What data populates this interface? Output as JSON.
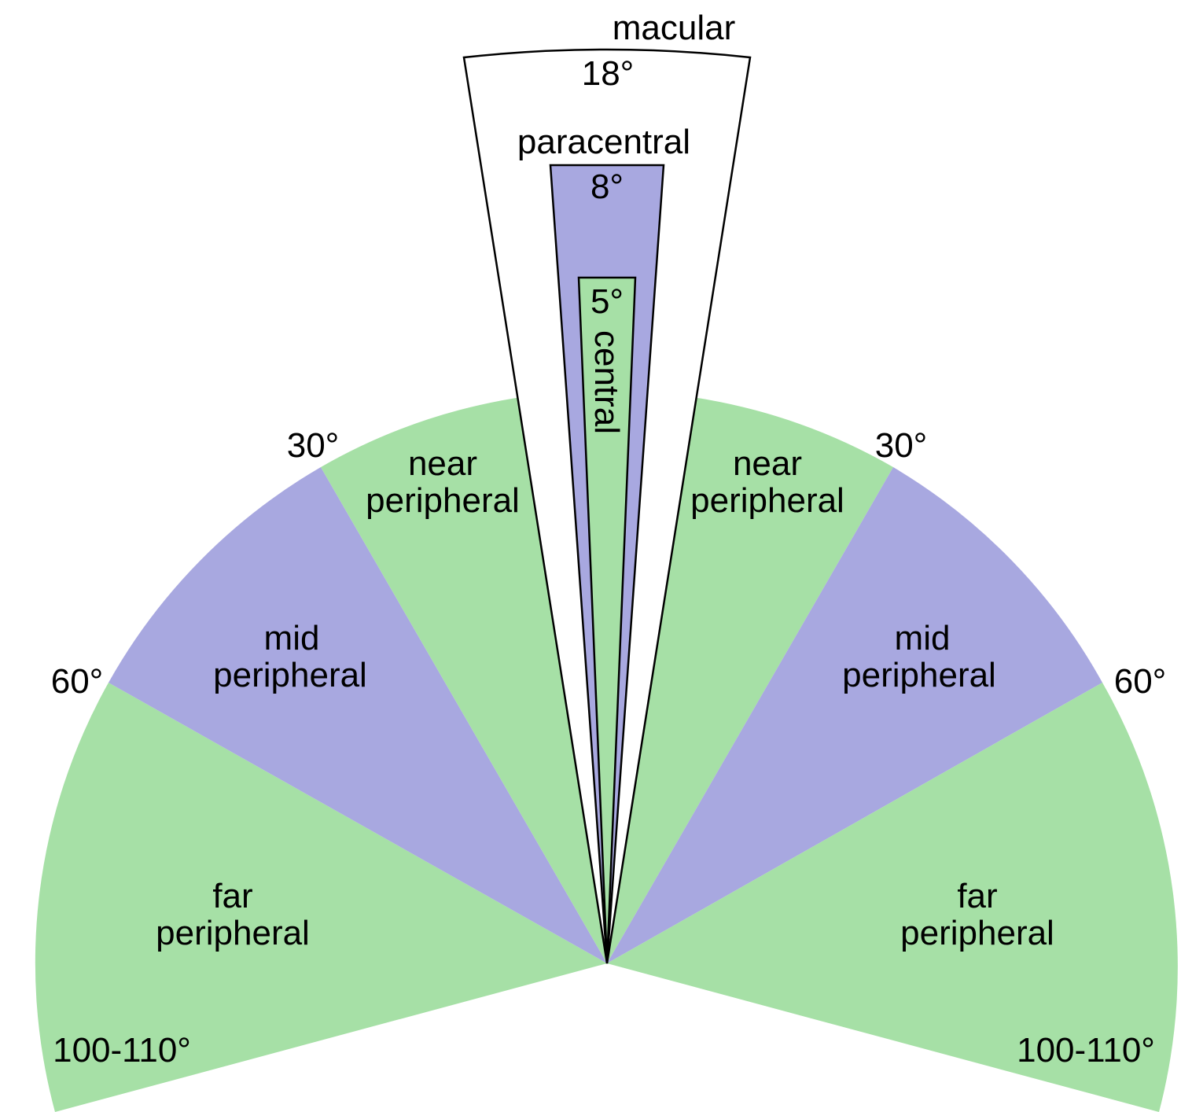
{
  "colors": {
    "green": "#a6e0a6",
    "blue": "#a8a8e0",
    "white": "#ffffff",
    "outline": "#000000"
  },
  "regions": {
    "far_left": {
      "line1": "far",
      "line2": "peripheral",
      "fill": "green"
    },
    "mid_left": {
      "line1": "mid",
      "line2": "peripheral",
      "fill": "blue"
    },
    "near_left": {
      "line1": "near",
      "line2": "peripheral",
      "fill": "green"
    },
    "near_right": {
      "line1": "near",
      "line2": "peripheral",
      "fill": "green"
    },
    "mid_right": {
      "line1": "mid",
      "line2": "peripheral",
      "fill": "blue"
    },
    "far_right": {
      "line1": "far",
      "line2": "peripheral",
      "fill": "green"
    },
    "macular": {
      "name": "macular",
      "angle": "18°",
      "fill": "white"
    },
    "paracentral": {
      "name": "paracentral",
      "angle": "8°",
      "fill": "blue"
    },
    "central": {
      "name": "central",
      "angle": "5°",
      "fill": "green"
    }
  },
  "angle_labels": {
    "left_30": "30°",
    "right_30": "30°",
    "left_60": "60°",
    "right_60": "60°",
    "left_100_110": "100-110°",
    "right_100_110": "100-110°"
  }
}
